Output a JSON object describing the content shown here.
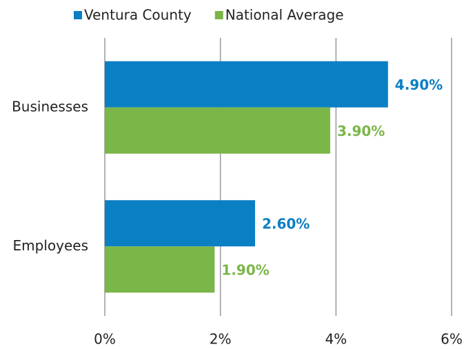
{
  "chart_data": {
    "type": "bar",
    "orientation": "horizontal",
    "categories": [
      "Businesses",
      "Employees"
    ],
    "series": [
      {
        "name": "Ventura County",
        "color": "#0a7fc4",
        "values": [
          4.9,
          2.6
        ],
        "value_labels": [
          "4.90%",
          "2.60%"
        ]
      },
      {
        "name": "National Average",
        "color": "#7ab648",
        "values": [
          3.9,
          1.9
        ],
        "value_labels": [
          "3.90%",
          "1.90%"
        ]
      }
    ],
    "xlim": [
      0,
      6
    ],
    "xticks": [
      {
        "value": 0,
        "label": "0%"
      },
      {
        "value": 2,
        "label": "2%"
      },
      {
        "value": 4,
        "label": "4%"
      },
      {
        "value": 6,
        "label": "6%"
      }
    ],
    "grid": true,
    "legend": "top"
  }
}
